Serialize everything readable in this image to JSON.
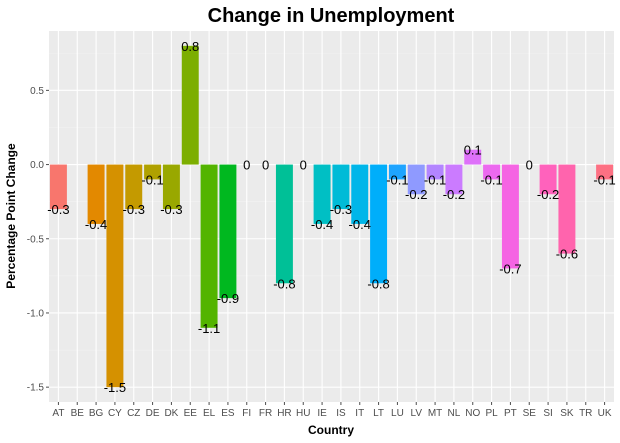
{
  "chart_data": {
    "type": "bar",
    "title": "Change in Unemployment",
    "xlabel": "Country",
    "ylabel": "Percentage Point Change",
    "ylim": [
      -1.6,
      0.9
    ],
    "yticks": [
      -1.5,
      -1.0,
      -0.5,
      0.0,
      0.5
    ],
    "ytick_labels": [
      "-1.5",
      "-1.0",
      "-0.5",
      "0.0",
      "0.5"
    ],
    "grid": true,
    "legend": "none",
    "categories": [
      "AT",
      "BE",
      "BG",
      "CY",
      "CZ",
      "DE",
      "DK",
      "EE",
      "EL",
      "ES",
      "FI",
      "FR",
      "HR",
      "HU",
      "IE",
      "IS",
      "IT",
      "LT",
      "LU",
      "LV",
      "MT",
      "NL",
      "NO",
      "PL",
      "PT",
      "SE",
      "SI",
      "SK",
      "TR",
      "UK"
    ],
    "values": [
      -0.3,
      null,
      -0.4,
      -1.5,
      -0.3,
      -0.1,
      -0.3,
      0.8,
      -1.1,
      -0.9,
      0,
      0,
      -0.8,
      0,
      -0.4,
      -0.3,
      -0.4,
      -0.8,
      -0.1,
      -0.2,
      -0.1,
      -0.2,
      0.1,
      -0.1,
      -0.7,
      0,
      -0.2,
      -0.6,
      null,
      -0.1
    ],
    "data_labels": [
      "-0.3",
      "",
      "-0.4",
      "-1.5",
      "-0.3",
      "-0.1",
      "-0.3",
      "0.8",
      "-1.1",
      "-0.9",
      "0",
      "0",
      "-0.8",
      "0",
      "-0.4",
      "-0.3",
      "-0.4",
      "-0.8",
      "-0.1",
      "-0.2",
      "-0.1",
      "-0.2",
      "0.1",
      "-0.1",
      "-0.7",
      "0",
      "-0.2",
      "-0.6",
      "",
      "-0.1"
    ],
    "colors": [
      "#F8766D",
      "#EE8043",
      "#E38900",
      "#D59100",
      "#C49A00",
      "#B0A100",
      "#99A800",
      "#7CAE00",
      "#53B400",
      "#00B81F",
      "#00BC59",
      "#00BF7B",
      "#00C097",
      "#00C0AF",
      "#00BFC4",
      "#00BBD7",
      "#00B6E9",
      "#00AEFA",
      "#1EA4FF",
      "#8F9AFF",
      "#B385FF",
      "#CB7BFF",
      "#DE71F9",
      "#EC69EF",
      "#F564E3",
      "#FC61D3",
      "#FF62BC",
      "#FF64AD",
      "#FF6C91",
      "#FD7083"
    ]
  }
}
